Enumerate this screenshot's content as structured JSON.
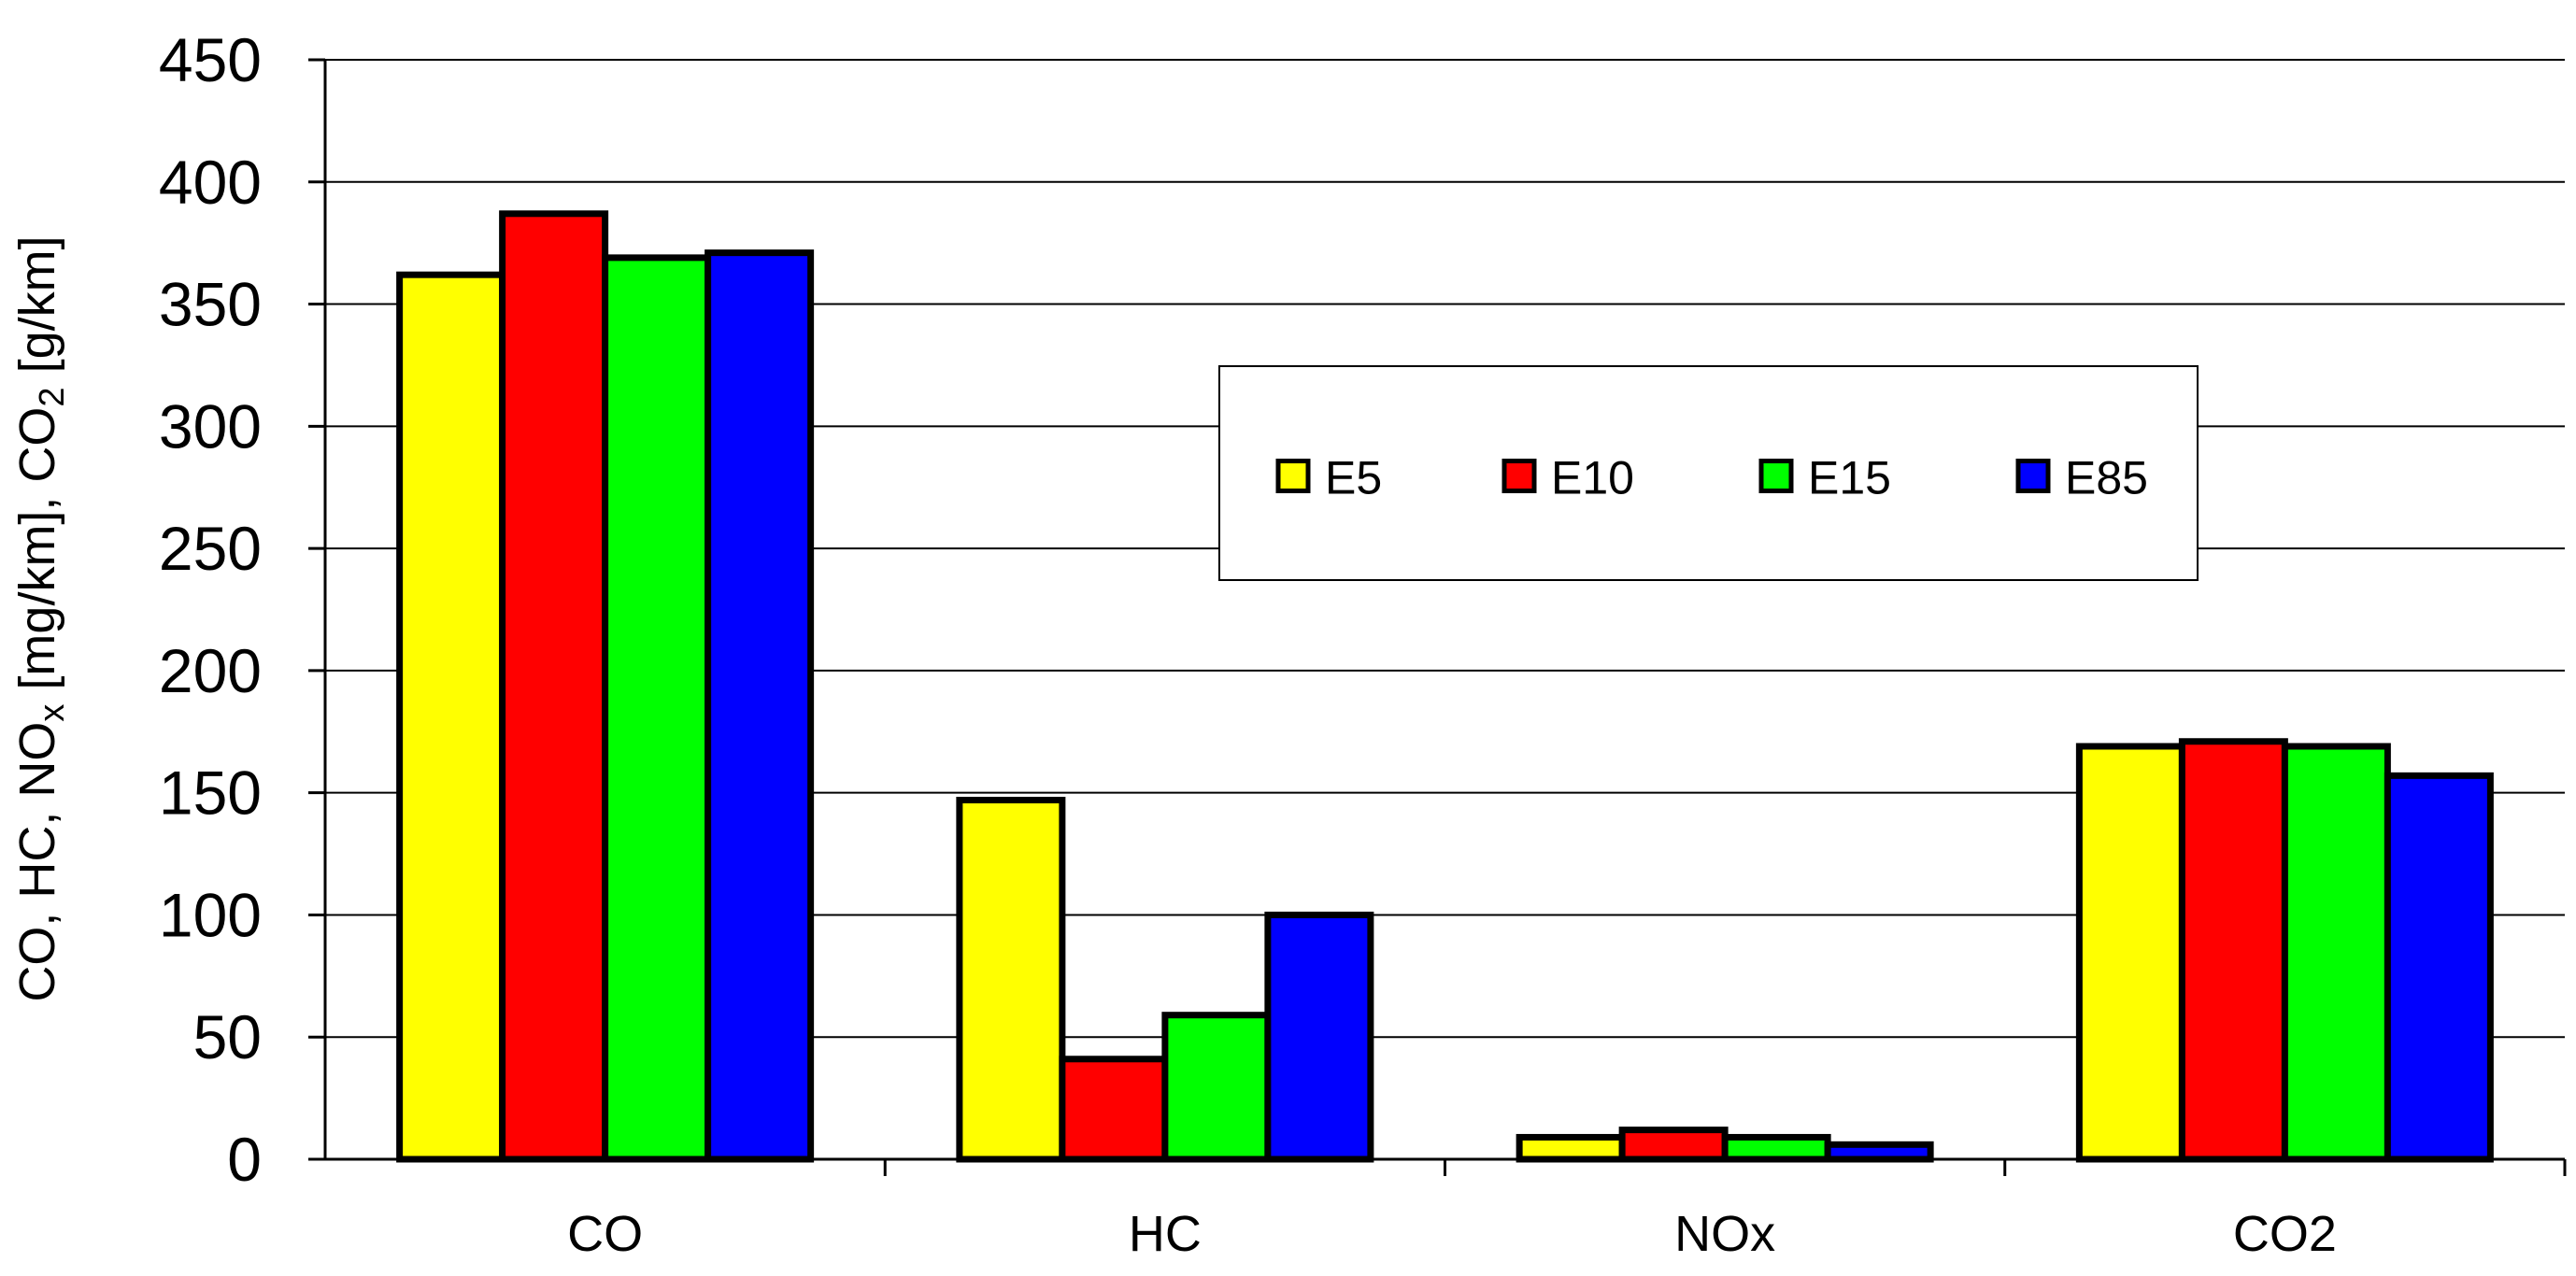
{
  "chart_data": {
    "type": "bar",
    "categories": [
      "CO",
      "HC",
      "NOx",
      "CO2"
    ],
    "series": [
      {
        "name": "E5",
        "color": "#ffff00",
        "values": [
          362,
          147,
          9,
          169
        ]
      },
      {
        "name": "E10",
        "color": "#ff0000",
        "values": [
          387,
          41,
          12,
          171
        ]
      },
      {
        "name": "E15",
        "color": "#00ff00",
        "values": [
          369,
          59,
          9,
          169
        ]
      },
      {
        "name": "E85",
        "color": "#0000ff",
        "values": [
          371,
          100,
          6,
          157
        ]
      }
    ],
    "ylim": [
      0,
      450
    ],
    "yticks": [
      0,
      50,
      100,
      150,
      200,
      250,
      300,
      350,
      400,
      450
    ],
    "ylabel": {
      "segments": [
        {
          "text": "CO, HC, NO",
          "style": "normal"
        },
        {
          "text": "x",
          "style": "sub"
        },
        {
          "text": " [mg/km], CO",
          "style": "normal"
        },
        {
          "text": "2",
          "style": "sub"
        },
        {
          "text": " [g/km]",
          "style": "normal"
        }
      ]
    },
    "grid": true,
    "legend_position": "top-center"
  }
}
